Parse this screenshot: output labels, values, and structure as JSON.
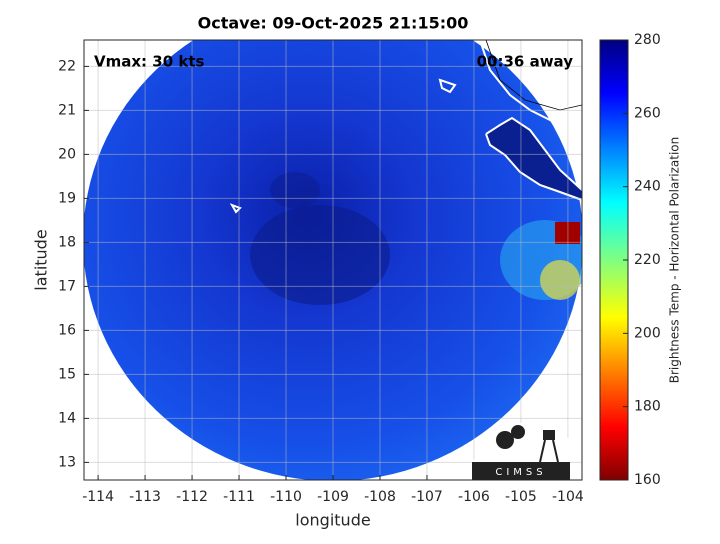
{
  "map": {
    "title": "Octave: 09-Oct-2025 21:15:00",
    "annotations": {
      "vmax": "Vmax: 30 kts",
      "time_away": "00:36 away"
    },
    "x_axis": {
      "label": "longitude",
      "lim": [
        -114.3,
        -103.7
      ],
      "ticks": [
        -114,
        -113,
        -112,
        -111,
        -110,
        -109,
        -108,
        -107,
        -106,
        -105,
        -104
      ]
    },
    "y_axis": {
      "label": "latitude",
      "lim": [
        12.6,
        22.6
      ],
      "ticks": [
        13,
        14,
        15,
        16,
        17,
        18,
        19,
        20,
        21,
        22
      ]
    },
    "colorbar": {
      "label": "Brightness Temp - Horizontal Polarization",
      "lim": [
        160,
        280
      ],
      "ticks": [
        160,
        180,
        200,
        220,
        240,
        260,
        280
      ]
    },
    "logo": "CIMSS"
  }
}
